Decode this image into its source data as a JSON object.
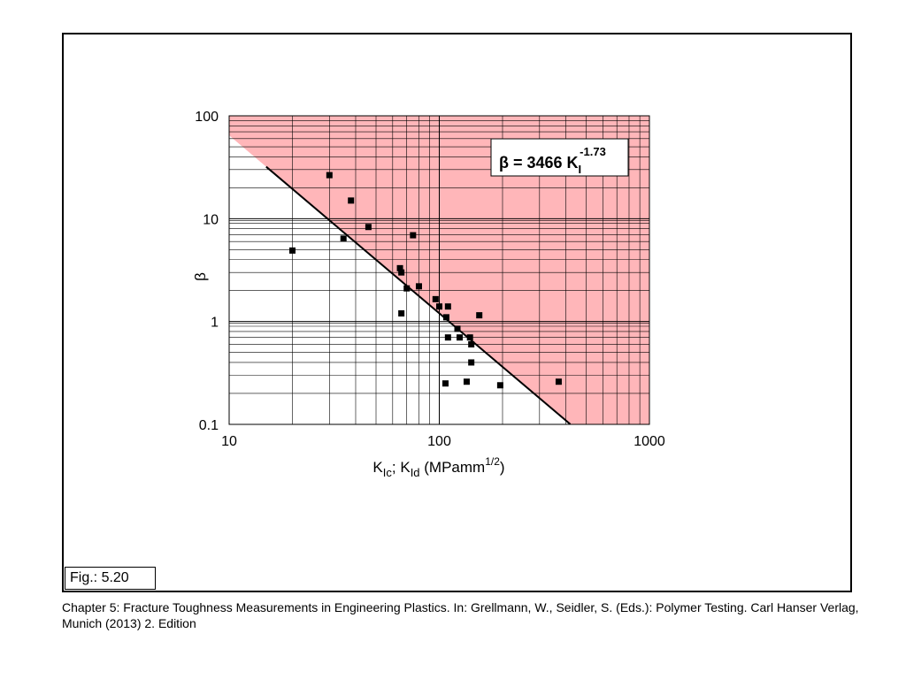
{
  "figure": {
    "label": "Fig.: 5.20"
  },
  "caption": "Chapter 5: Fracture Toughness Measurements in Engineering Plastics. In: Grellmann, W., Seidler, S. (Eds.): Polymer Testing. Carl Hanser Verlag, Munich (2013) 2. Edition",
  "chart_data": {
    "type": "scatter",
    "x_scale": "log",
    "y_scale": "log",
    "xlim": [
      10,
      1000
    ],
    "ylim": [
      0.1,
      100
    ],
    "x_tick_labels": [
      "10",
      "100",
      "1000"
    ],
    "y_tick_labels": [
      "0.1",
      "1",
      "10",
      "100"
    ],
    "xlabel": {
      "main": "K",
      "sub1": "Ic",
      "sep": "; K",
      "sub2": "Id",
      "unit": " (MPamm",
      "sup": "1/2",
      "close": ")"
    },
    "ylabel": "β",
    "grid": true,
    "shaded_region_color": "#ffb6b9",
    "fit": {
      "a": 3466,
      "b": -1.73,
      "x_range": [
        15,
        420
      ],
      "label_main": "β = 3466 K",
      "label_sub": "I",
      "label_sup": "-1.73"
    },
    "points": [
      {
        "x": 20,
        "y": 4.9
      },
      {
        "x": 30,
        "y": 26.5
      },
      {
        "x": 35,
        "y": 6.4
      },
      {
        "x": 38,
        "y": 15.0
      },
      {
        "x": 46,
        "y": 8.3
      },
      {
        "x": 65,
        "y": 3.3
      },
      {
        "x": 66,
        "y": 3.0
      },
      {
        "x": 66,
        "y": 1.2
      },
      {
        "x": 70,
        "y": 2.1
      },
      {
        "x": 75,
        "y": 6.9
      },
      {
        "x": 80,
        "y": 2.2
      },
      {
        "x": 96,
        "y": 1.65
      },
      {
        "x": 100,
        "y": 1.4
      },
      {
        "x": 108,
        "y": 1.1
      },
      {
        "x": 110,
        "y": 1.4
      },
      {
        "x": 110,
        "y": 0.7
      },
      {
        "x": 122,
        "y": 0.85
      },
      {
        "x": 125,
        "y": 0.7
      },
      {
        "x": 140,
        "y": 0.7
      },
      {
        "x": 142,
        "y": 0.6
      },
      {
        "x": 142,
        "y": 0.4
      },
      {
        "x": 155,
        "y": 1.15
      },
      {
        "x": 107,
        "y": 0.25
      },
      {
        "x": 135,
        "y": 0.26
      },
      {
        "x": 195,
        "y": 0.24
      },
      {
        "x": 370,
        "y": 0.26
      }
    ]
  }
}
